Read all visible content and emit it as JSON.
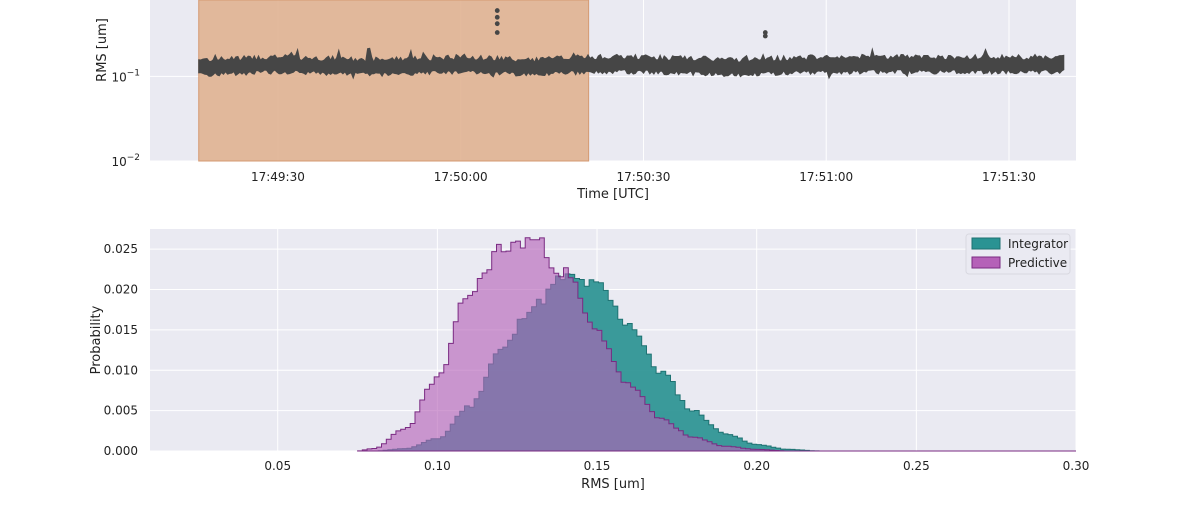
{
  "chart_data": [
    {
      "type": "scatter",
      "xlabel": "Time [UTC]",
      "ylabel": "RMS [um]",
      "yscale": "log",
      "ylim": [
        0.01,
        0.8
      ],
      "x_ticks": [
        "17:49:30",
        "17:50:00",
        "17:50:30",
        "17:51:00",
        "17:51:30"
      ],
      "y_ticks": [
        "10^-2",
        "10^-1"
      ],
      "x_range": [
        "17:49:09",
        "17:51:41"
      ],
      "grid": true,
      "shaded_region": {
        "start": "17:49:17",
        "end": "17:50:21",
        "color": "#e0b291"
      },
      "series": [
        {
          "color": "#464646",
          "x": [
            "17:49:17",
            "17:49:30",
            "17:49:45",
            "17:50:00",
            "17:50:12",
            "17:50:21",
            "17:50:30",
            "17:50:45",
            "17:51:00",
            "17:51:15",
            "17:51:30",
            "17:51:39"
          ],
          "y": [
            0.13,
            0.14,
            0.13,
            0.14,
            0.13,
            0.14,
            0.14,
            0.13,
            0.14,
            0.14,
            0.14,
            0.14
          ],
          "outliers": [
            {
              "x": "17:50:06",
              "y": 0.6
            },
            {
              "x": "17:50:06",
              "y": 0.5
            },
            {
              "x": "17:50:06",
              "y": 0.42
            },
            {
              "x": "17:50:06",
              "y": 0.33
            },
            {
              "x": "17:50:50",
              "y": 0.33
            },
            {
              "x": "17:50:50",
              "y": 0.3
            }
          ]
        }
      ]
    },
    {
      "type": "area",
      "xlabel": "RMS [um]",
      "ylabel": "Probability",
      "xlim": [
        0.01,
        0.3
      ],
      "ylim": [
        0,
        0.0275
      ],
      "x_ticks": [
        "0.05",
        "0.10",
        "0.15",
        "0.20",
        "0.25",
        "0.30"
      ],
      "y_ticks": [
        "0.000",
        "0.005",
        "0.010",
        "0.015",
        "0.020",
        "0.025"
      ],
      "grid": true,
      "legend": "top-right",
      "series": [
        {
          "name": "Integrator",
          "color": "#2a9393",
          "x": [
            0.08,
            0.09,
            0.1,
            0.11,
            0.12,
            0.13,
            0.14,
            0.15,
            0.16,
            0.17,
            0.18,
            0.19,
            0.2,
            0.21,
            0.22
          ],
          "y": [
            0.0,
            0.0003,
            0.0015,
            0.0055,
            0.0125,
            0.018,
            0.0215,
            0.0205,
            0.0158,
            0.0098,
            0.005,
            0.0022,
            0.0008,
            0.0002,
            0.0
          ]
        },
        {
          "name": "Predictive",
          "color": "#b561b8",
          "x": [
            0.075,
            0.08,
            0.09,
            0.1,
            0.11,
            0.12,
            0.13,
            0.14,
            0.15,
            0.16,
            0.17,
            0.18,
            0.19,
            0.2,
            0.21
          ],
          "y": [
            0.0,
            0.0003,
            0.0028,
            0.009,
            0.0195,
            0.025,
            0.0262,
            0.022,
            0.0148,
            0.0082,
            0.004,
            0.0017,
            0.0006,
            0.0002,
            0.0
          ]
        }
      ]
    }
  ]
}
